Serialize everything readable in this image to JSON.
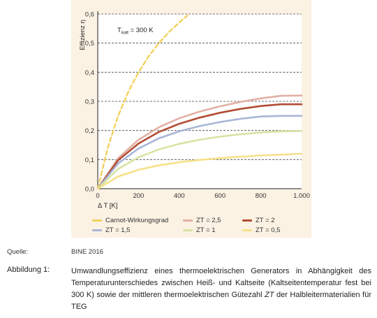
{
  "chart_data": {
    "type": "line",
    "title": "",
    "xlabel": "Δ T [K]",
    "ylabel": "Effizienz η",
    "annotation": {
      "main": "T",
      "sub": "kalt",
      "rest": " = 300 K"
    },
    "xlim": [
      0,
      1000
    ],
    "ylim": [
      0,
      0.6
    ],
    "x_ticks": [
      0,
      200,
      400,
      600,
      800,
      1000
    ],
    "x_tick_labels": [
      "0",
      "200",
      "400",
      "600",
      "800",
      "1.000"
    ],
    "y_ticks": [
      0,
      0.1,
      0.2,
      0.3,
      0.4,
      0.5,
      0.6
    ],
    "y_tick_labels": [
      "0,0",
      "0,1",
      "0,2",
      "0,3",
      "0,4",
      "0,5",
      "0,6"
    ],
    "grid": "horizontal dashed",
    "legend_position": "bottom",
    "series": [
      {
        "name": "Carnot-Wirkungsgrad",
        "color": "#f2d15c",
        "style": "dashed",
        "x": [
          0,
          50,
          100,
          150,
          200,
          250,
          300,
          350,
          400,
          440
        ],
        "y": [
          0,
          0.143,
          0.25,
          0.333,
          0.4,
          0.455,
          0.5,
          0.538,
          0.571,
          0.595
        ]
      },
      {
        "name": "ZT = 2,5",
        "color": "#e2b0a4",
        "style": "solid",
        "x": [
          0,
          100,
          200,
          300,
          400,
          500,
          600,
          700,
          800,
          900,
          1000
        ],
        "y": [
          0,
          0.105,
          0.168,
          0.211,
          0.242,
          0.265,
          0.283,
          0.298,
          0.31,
          0.319,
          0.32
        ]
      },
      {
        "name": "ZT = 2",
        "color": "#b24c33",
        "style": "solid",
        "x": [
          0,
          100,
          200,
          300,
          400,
          500,
          600,
          700,
          800,
          900,
          1000
        ],
        "y": [
          0,
          0.098,
          0.155,
          0.195,
          0.223,
          0.244,
          0.261,
          0.274,
          0.284,
          0.29,
          0.29
        ]
      },
      {
        "name": "ZT = 1,5",
        "color": "#a8b6d6",
        "style": "solid",
        "x": [
          0,
          100,
          200,
          300,
          400,
          500,
          600,
          700,
          800,
          900,
          1000
        ],
        "y": [
          0,
          0.087,
          0.138,
          0.173,
          0.197,
          0.215,
          0.229,
          0.24,
          0.248,
          0.25,
          0.25
        ]
      },
      {
        "name": "ZT = 1",
        "color": "#d6e3a4",
        "style": "solid",
        "x": [
          0,
          100,
          200,
          300,
          400,
          500,
          600,
          700,
          800,
          900,
          1000
        ],
        "y": [
          0,
          0.068,
          0.108,
          0.135,
          0.154,
          0.168,
          0.179,
          0.187,
          0.193,
          0.197,
          0.198
        ]
      },
      {
        "name": "ZT = 0,5",
        "color": "#f6e189",
        "style": "solid",
        "x": [
          0,
          100,
          200,
          300,
          400,
          500,
          600,
          700,
          800,
          900,
          1000
        ],
        "y": [
          0,
          0.042,
          0.065,
          0.08,
          0.091,
          0.099,
          0.105,
          0.11,
          0.114,
          0.117,
          0.12
        ]
      }
    ]
  },
  "source": {
    "label": "Quelle:",
    "value": "BINE 2016"
  },
  "caption": {
    "label": "Abbildung 1:",
    "text_before": "Umwandlungseffizienz eines thermoelektrischen Generators in Abhängigkeit des Temperaturunterschiedes zwischen Heiß- und Kaltseite (Kaltseitentemperatur fest bei 300 K) sowie der mittleren thermoelektrischen Gütezahl ",
    "text_italic": "ZT",
    "text_after": " der Halbleitermaterialien für TEG"
  }
}
